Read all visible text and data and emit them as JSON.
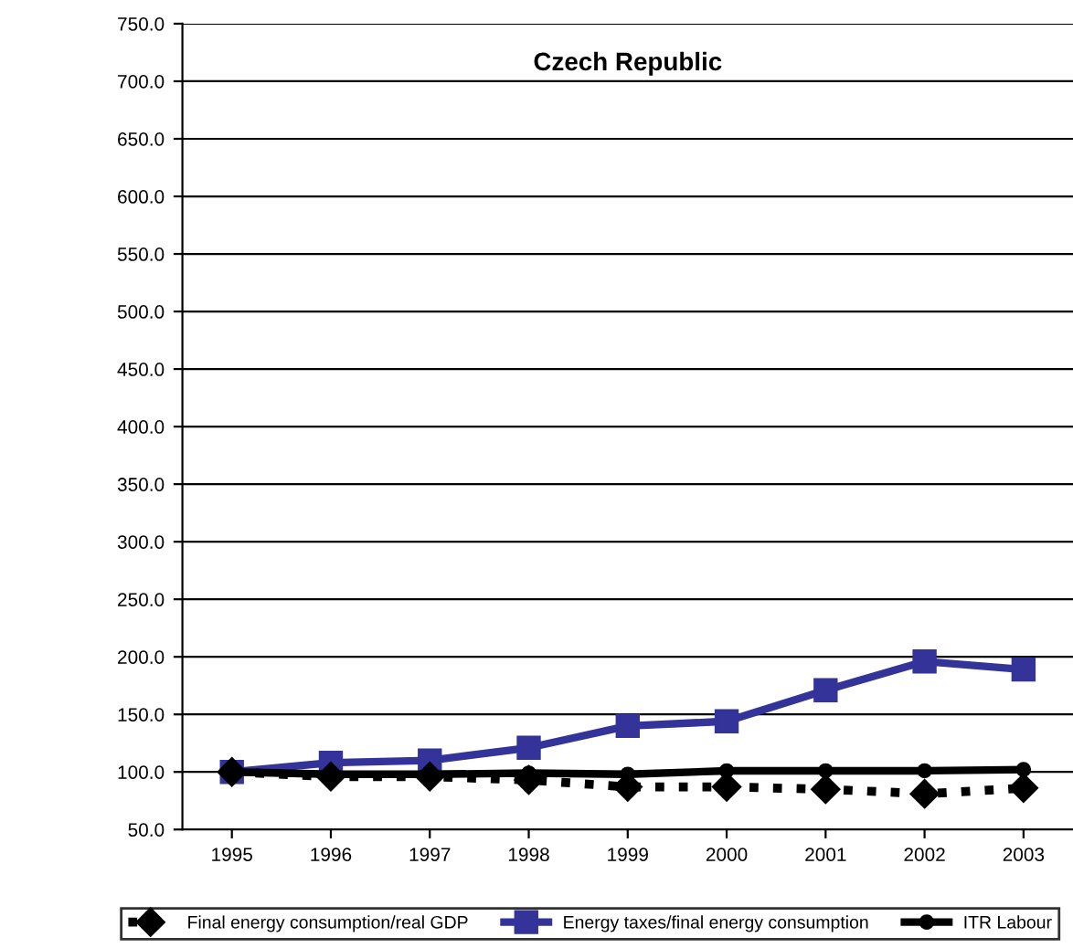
{
  "chart_data": {
    "type": "line",
    "title": "Czech Republic",
    "categories": [
      "1995",
      "1996",
      "1997",
      "1998",
      "1999",
      "2000",
      "2001",
      "2002",
      "2003"
    ],
    "series": [
      {
        "name": "Final energy consumption/real GDP",
        "color": "#000000",
        "values": [
          100,
          96,
          96,
          93,
          87,
          87,
          85,
          81,
          86
        ],
        "marker": "diamond",
        "line_style": "dotted"
      },
      {
        "name": "Energy taxes/final energy consumption",
        "color": "#333399",
        "values": [
          100,
          108,
          110,
          121,
          140,
          144,
          171,
          196,
          189
        ],
        "marker": "square",
        "line_style": "solid"
      },
      {
        "name": "ITR Labour",
        "color": "#000000",
        "values": [
          100,
          98,
          98,
          99,
          98,
          101,
          101,
          101,
          102
        ],
        "marker": "circle",
        "line_style": "solid"
      }
    ],
    "ylim": [
      50,
      750
    ],
    "yticks": [
      {
        "value": 50,
        "label": "50.0"
      },
      {
        "value": 100,
        "label": "100.0"
      },
      {
        "value": 150,
        "label": "150.0"
      },
      {
        "value": 200,
        "label": "200.0"
      },
      {
        "value": 250,
        "label": "250.0"
      },
      {
        "value": 300,
        "label": "300.0"
      },
      {
        "value": 350,
        "label": "350.0"
      },
      {
        "value": 400,
        "label": "400.0"
      },
      {
        "value": 450,
        "label": "450.0"
      },
      {
        "value": 500,
        "label": "500.0"
      },
      {
        "value": 550,
        "label": "550.0"
      },
      {
        "value": 600,
        "label": "600.0"
      },
      {
        "value": 650,
        "label": "650.0"
      },
      {
        "value": 700,
        "label": "700.0"
      },
      {
        "value": 750,
        "label": "750.0"
      }
    ],
    "grid": "y",
    "legend": "bottom"
  }
}
